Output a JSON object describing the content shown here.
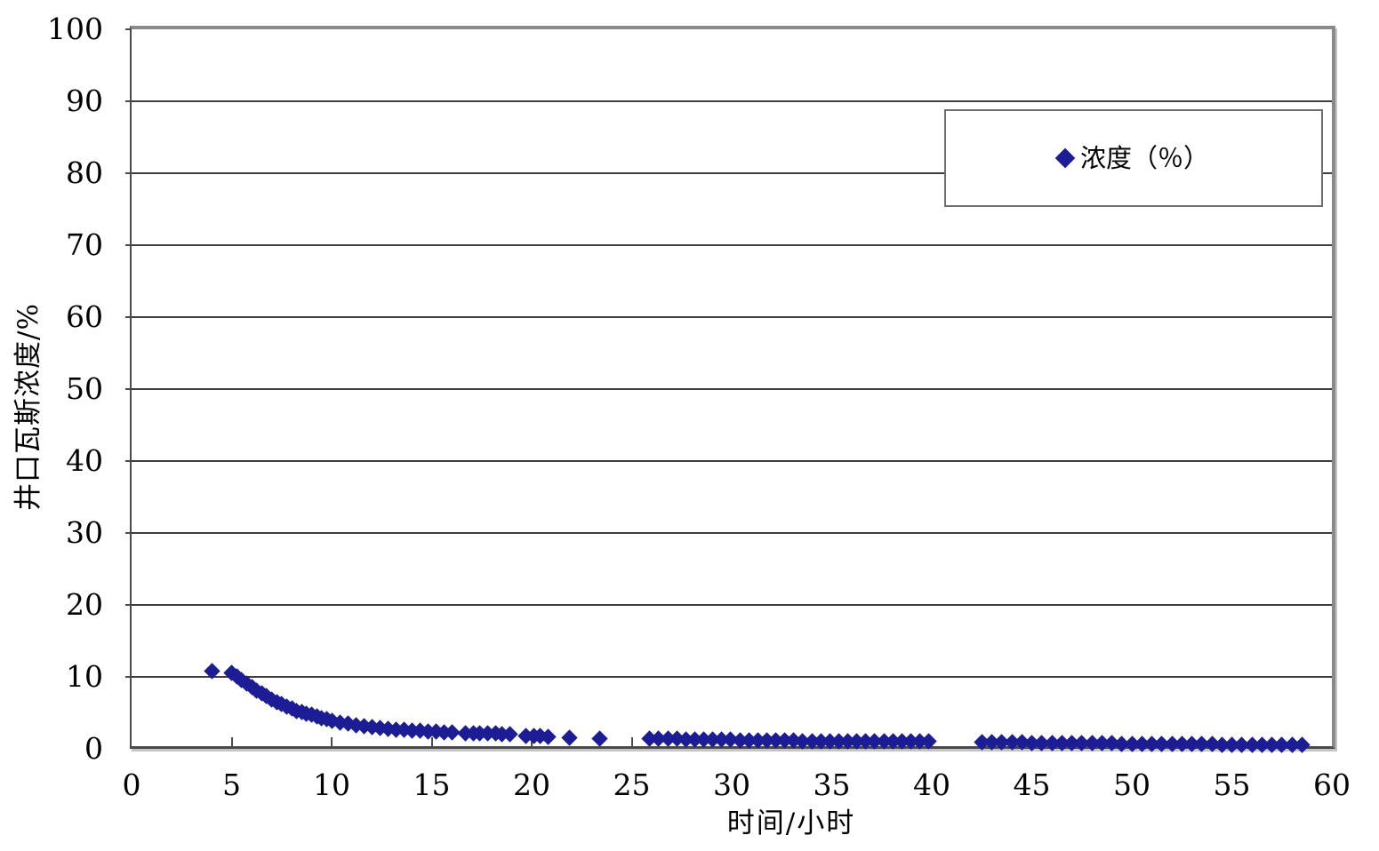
{
  "colors": {
    "marker": "#1c1c94",
    "gridline": "#3d3d3d",
    "axis": "#4a4a4a",
    "frame_shadow": "#8a8a8a",
    "legend_border": "#6e6e6e",
    "background": "#ffffff"
  },
  "legend": {
    "position": "upper-right",
    "marker_icon": "diamond-icon"
  },
  "chart_data": {
    "type": "scatter",
    "title": "",
    "xlabel": "时间/小时",
    "ylabel": "井口瓦斯浓度/%",
    "xlim": [
      0,
      60
    ],
    "ylim": [
      0,
      100
    ],
    "x_ticks": [
      0,
      5,
      10,
      15,
      20,
      25,
      30,
      35,
      40,
      45,
      50,
      55,
      60
    ],
    "y_ticks": [
      0,
      10,
      20,
      30,
      40,
      50,
      60,
      70,
      80,
      90,
      100
    ],
    "grid": "horizontal",
    "marker": "diamond",
    "marker_size_px": 18,
    "series": [
      {
        "name": "浓度（％）",
        "color": "#1c1c94",
        "points": [
          [
            4,
            10.8
          ],
          [
            5,
            10.6
          ],
          [
            5.25,
            10.1
          ],
          [
            5.5,
            9.6
          ],
          [
            5.75,
            9.1
          ],
          [
            6,
            8.6
          ],
          [
            6.25,
            8.1
          ],
          [
            6.5,
            7.7
          ],
          [
            6.75,
            7.3
          ],
          [
            7,
            6.9
          ],
          [
            7.25,
            6.5
          ],
          [
            7.5,
            6.2
          ],
          [
            7.75,
            5.9
          ],
          [
            8,
            5.6
          ],
          [
            8.25,
            5.3
          ],
          [
            8.5,
            5.1
          ],
          [
            8.75,
            4.9
          ],
          [
            9,
            4.7
          ],
          [
            9.25,
            4.5
          ],
          [
            9.5,
            4.3
          ],
          [
            9.75,
            4.1
          ],
          [
            10,
            3.9
          ],
          [
            10.4,
            3.7
          ],
          [
            10.8,
            3.5
          ],
          [
            11.2,
            3.3
          ],
          [
            11.6,
            3.1
          ],
          [
            12,
            3.0
          ],
          [
            12.4,
            2.9
          ],
          [
            12.8,
            2.8
          ],
          [
            13.2,
            2.7
          ],
          [
            13.6,
            2.6
          ],
          [
            14,
            2.5
          ],
          [
            14.4,
            2.5
          ],
          [
            14.8,
            2.4
          ],
          [
            15.2,
            2.4
          ],
          [
            15.6,
            2.3
          ],
          [
            16,
            2.3
          ],
          [
            16.7,
            2.2
          ],
          [
            17.1,
            2.2
          ],
          [
            17.4,
            2.1
          ],
          [
            17.8,
            2.1
          ],
          [
            18.2,
            2.1
          ],
          [
            18.5,
            2.0
          ],
          [
            18.9,
            2.0
          ],
          [
            19.7,
            1.8
          ],
          [
            20.1,
            1.8
          ],
          [
            20.4,
            1.8
          ],
          [
            20.8,
            1.7
          ],
          [
            21.9,
            1.5
          ],
          [
            23.4,
            1.4
          ],
          [
            25.9,
            1.4
          ],
          [
            26.35,
            1.4
          ],
          [
            26.8,
            1.4
          ],
          [
            27.25,
            1.4
          ],
          [
            27.7,
            1.3
          ],
          [
            28.15,
            1.3
          ],
          [
            28.6,
            1.3
          ],
          [
            29.05,
            1.3
          ],
          [
            29.5,
            1.3
          ],
          [
            29.95,
            1.3
          ],
          [
            30.4,
            1.2
          ],
          [
            30.85,
            1.2
          ],
          [
            31.3,
            1.2
          ],
          [
            31.75,
            1.2
          ],
          [
            32.2,
            1.2
          ],
          [
            32.65,
            1.2
          ],
          [
            33.1,
            1.2
          ],
          [
            33.55,
            1.1
          ],
          [
            34,
            1.1
          ],
          [
            34.45,
            1.1
          ],
          [
            34.9,
            1.1
          ],
          [
            35.35,
            1.1
          ],
          [
            35.8,
            1.1
          ],
          [
            36.25,
            1.1
          ],
          [
            36.7,
            1.1
          ],
          [
            37.15,
            1.0
          ],
          [
            37.6,
            1.0
          ],
          [
            38.05,
            1.0
          ],
          [
            38.5,
            1.0
          ],
          [
            38.95,
            1.0
          ],
          [
            39.4,
            1.0
          ],
          [
            39.85,
            1.0
          ],
          [
            42.5,
            0.9
          ],
          [
            43,
            0.9
          ],
          [
            43.5,
            0.9
          ],
          [
            44,
            0.9
          ],
          [
            44.5,
            0.9
          ],
          [
            45,
            0.8
          ],
          [
            45.5,
            0.8
          ],
          [
            46,
            0.8
          ],
          [
            46.5,
            0.8
          ],
          [
            47,
            0.8
          ],
          [
            47.5,
            0.8
          ],
          [
            48,
            0.8
          ],
          [
            48.5,
            0.8
          ],
          [
            49,
            0.8
          ],
          [
            49.5,
            0.7
          ],
          [
            50,
            0.7
          ],
          [
            50.5,
            0.7
          ],
          [
            51,
            0.7
          ],
          [
            51.5,
            0.7
          ],
          [
            52,
            0.7
          ],
          [
            52.5,
            0.7
          ],
          [
            53,
            0.7
          ],
          [
            53.5,
            0.7
          ],
          [
            54,
            0.7
          ],
          [
            54.5,
            0.6
          ],
          [
            55,
            0.6
          ],
          [
            55.5,
            0.6
          ],
          [
            56,
            0.6
          ],
          [
            56.5,
            0.6
          ],
          [
            57,
            0.6
          ],
          [
            57.5,
            0.6
          ],
          [
            58,
            0.6
          ],
          [
            58.5,
            0.6
          ]
        ]
      }
    ]
  }
}
